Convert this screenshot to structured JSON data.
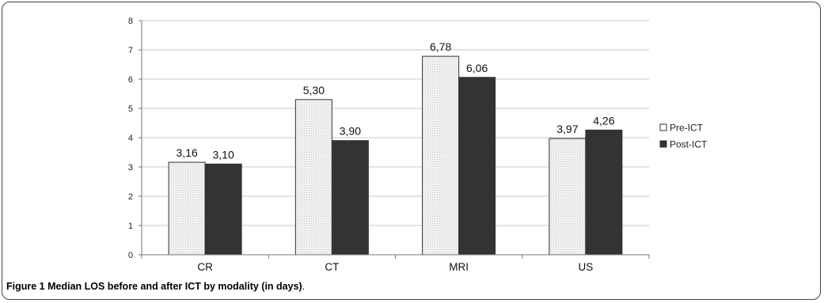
{
  "chart_data": {
    "type": "bar",
    "categories": [
      "CR",
      "CT",
      "MRI",
      "US"
    ],
    "series": [
      {
        "name": "Pre-ICT",
        "values": [
          3.16,
          5.3,
          6.78,
          3.97
        ],
        "labels": [
          "3,16",
          "5,30",
          "6,78",
          "3,97"
        ],
        "fill": "#f2f2f2",
        "pattern": "dotted"
      },
      {
        "name": "Post-ICT",
        "values": [
          3.1,
          3.9,
          6.06,
          4.26
        ],
        "labels": [
          "3,10",
          "3,90",
          "6,06",
          "4,26"
        ],
        "fill": "#333333",
        "pattern": "solid"
      }
    ],
    "ylim": [
      0,
      8
    ],
    "yticks": [
      "0",
      "1",
      "2",
      "3",
      "4",
      "5",
      "6",
      "7",
      "8"
    ],
    "grid": true,
    "legend_position": "right"
  },
  "caption": {
    "figure_label": "Figure 1",
    "text": "Median LOS before and after ICT by modality (in days)",
    "end": "."
  }
}
